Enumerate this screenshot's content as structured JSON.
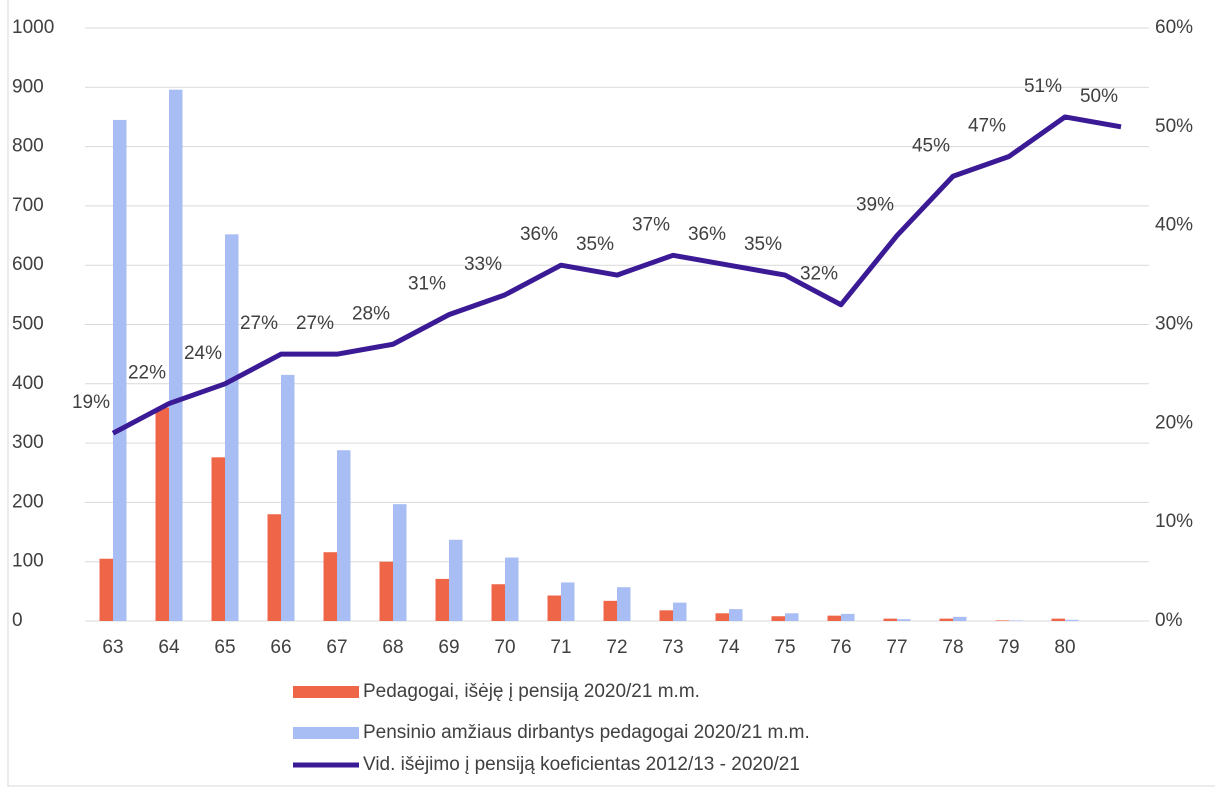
{
  "chart_data": {
    "type": "bar-line",
    "categories": [
      "63",
      "64",
      "65",
      "66",
      "67",
      "68",
      "69",
      "70",
      "71",
      "72",
      "73",
      "74",
      "75",
      "76",
      "77",
      "78",
      "79",
      "80",
      null
    ],
    "series": [
      {
        "name": "Pedagogai, išėję į pensiją 2020/21 m.m.",
        "type": "bar",
        "color": "#ef6548",
        "values": [
          105,
          360,
          276,
          180,
          116,
          100,
          71,
          62,
          43,
          34,
          18,
          13,
          8,
          9,
          4,
          4,
          1,
          4,
          0
        ]
      },
      {
        "name": "Pensinio amžiaus dirbantys pedagogai 2020/21 m.m.",
        "type": "bar",
        "color": "#a9bdf5",
        "values": [
          845,
          896,
          652,
          415,
          288,
          197,
          137,
          107,
          65,
          57,
          31,
          20,
          13,
          12,
          3,
          7,
          1,
          2,
          0
        ]
      },
      {
        "name": "Vid. išėjimo į pensiją koeficientas 2012/13 - 2020/21",
        "type": "line",
        "axis": "y2",
        "color": "#3b1a96",
        "values": [
          19,
          22,
          24,
          27,
          27,
          28,
          31,
          33,
          36,
          35,
          37,
          36,
          35,
          32,
          39,
          45,
          47,
          51,
          50
        ],
        "value_labels": [
          "19%",
          "22%",
          "24%",
          "27%",
          "27%",
          "28%",
          "31%",
          "33%",
          "36%",
          "35%",
          "37%",
          "36%",
          "35%",
          "32%",
          "39%",
          "45%",
          "47%",
          "51%",
          "50%"
        ]
      }
    ],
    "ylim": [
      0,
      1000
    ],
    "yticks": [
      0,
      100,
      200,
      300,
      400,
      500,
      600,
      700,
      800,
      900,
      1000
    ],
    "y2lim": [
      0,
      60
    ],
    "y2ticks": [
      {
        "value": 0,
        "label": "0%"
      },
      {
        "value": 10,
        "label": "10%"
      },
      {
        "value": 20,
        "label": "20%"
      },
      {
        "value": 30,
        "label": "30%"
      },
      {
        "value": 40,
        "label": "40%"
      },
      {
        "value": 50,
        "label": "50%"
      },
      {
        "value": 60,
        "label": "60%"
      }
    ],
    "grid": true,
    "legend": "bottom"
  }
}
